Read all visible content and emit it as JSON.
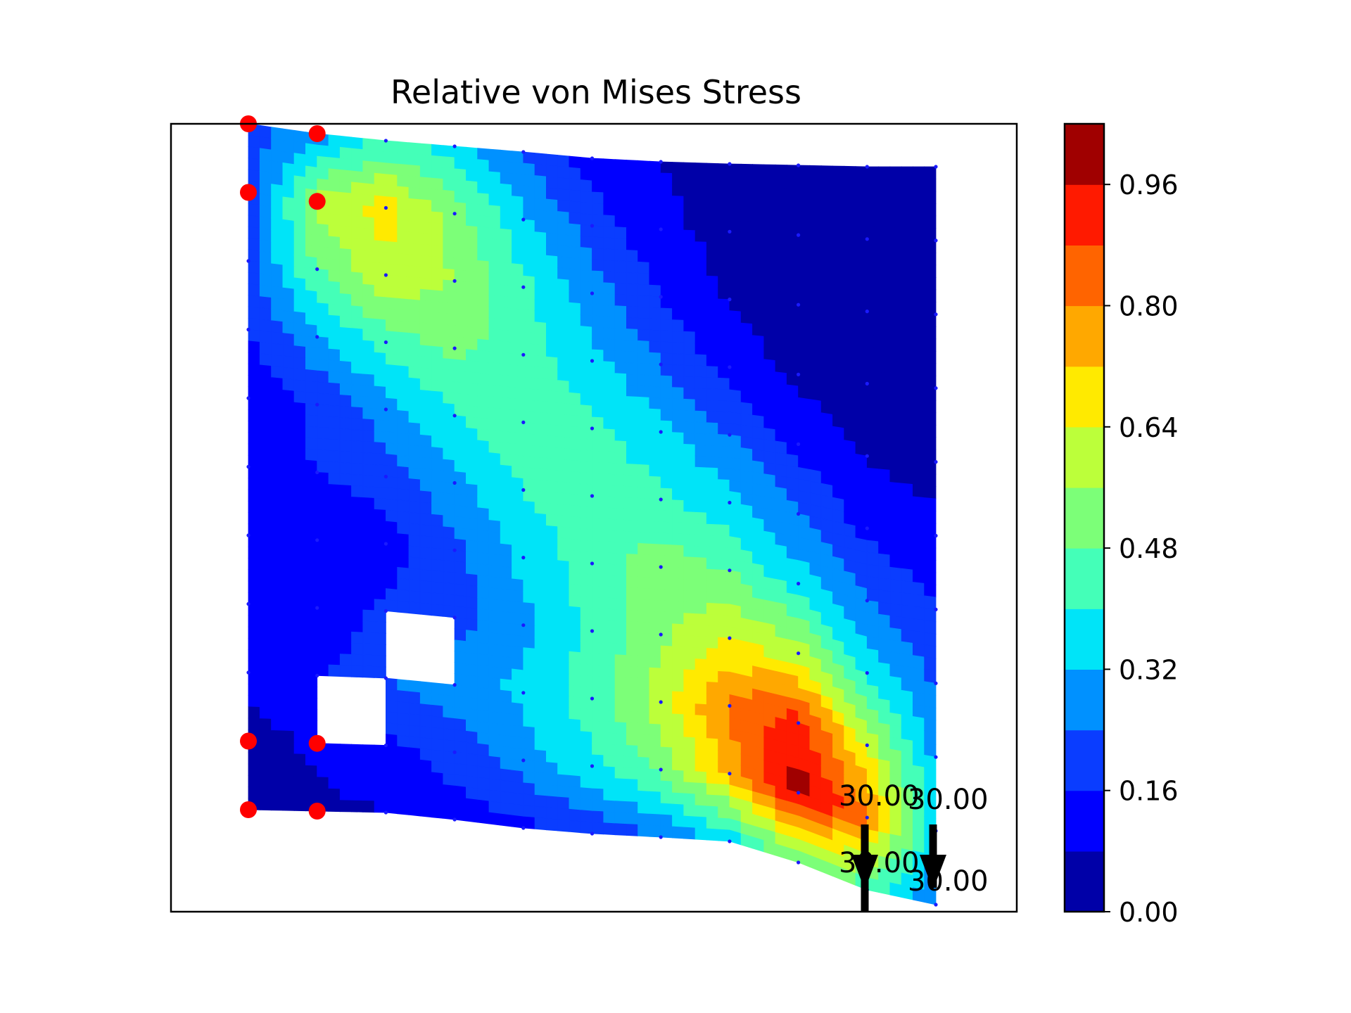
{
  "chart_data": {
    "type": "heatmap",
    "title": "Relative von Mises Stress",
    "xlabel": "",
    "ylabel": "",
    "colorbar": {
      "min": 0.0,
      "max": 1.04,
      "tick_labels": [
        "0.00",
        "0.16",
        "0.32",
        "0.48",
        "0.64",
        "0.80",
        "0.96"
      ],
      "tick_values": [
        0.0,
        0.16,
        0.32,
        0.48,
        0.64,
        0.8,
        0.96
      ],
      "level_colors": [
        "#0000a8",
        "#0000ff",
        "#0a3dff",
        "#0091ff",
        "#00e4f8",
        "#44ffb8",
        "#7cff78",
        "#bcff3a",
        "#ffea00",
        "#ffa800",
        "#ff6400",
        "#ff1a00",
        "#a00000"
      ]
    },
    "mesh": {
      "nx": 11,
      "ny": 11,
      "stress_rows_top_to_bottom": [
        [
          0.2,
          0.28,
          0.42,
          0.36,
          0.22,
          0.12,
          0.08,
          0.04,
          0.02,
          0.02,
          0.02
        ],
        [
          0.18,
          0.58,
          0.68,
          0.52,
          0.34,
          0.2,
          0.1,
          0.05,
          0.02,
          0.02,
          0.02
        ],
        [
          0.22,
          0.48,
          0.62,
          0.56,
          0.42,
          0.28,
          0.16,
          0.07,
          0.03,
          0.02,
          0.02
        ],
        [
          0.16,
          0.3,
          0.44,
          0.5,
          0.44,
          0.34,
          0.24,
          0.13,
          0.06,
          0.03,
          0.03
        ],
        [
          0.1,
          0.18,
          0.28,
          0.4,
          0.46,
          0.42,
          0.34,
          0.24,
          0.14,
          0.07,
          0.05
        ],
        [
          0.12,
          0.16,
          0.2,
          0.3,
          0.4,
          0.46,
          0.42,
          0.34,
          0.24,
          0.14,
          0.1
        ],
        [
          0.14,
          0.1,
          0.12,
          0.22,
          0.34,
          0.44,
          0.52,
          0.48,
          0.36,
          0.24,
          0.16
        ],
        [
          0.16,
          0.08,
          0.18,
          0.2,
          0.3,
          0.42,
          0.54,
          0.64,
          0.6,
          0.38,
          0.22
        ],
        [
          0.12,
          0.14,
          0.24,
          0.28,
          0.34,
          0.44,
          0.6,
          0.82,
          0.92,
          0.62,
          0.3
        ],
        [
          0.04,
          0.1,
          0.14,
          0.2,
          0.28,
          0.38,
          0.5,
          0.74,
          1.0,
          0.82,
          0.34
        ],
        [
          0.04,
          0.06,
          0.08,
          0.12,
          0.14,
          0.18,
          0.24,
          0.34,
          0.52,
          0.44,
          0.24
        ]
      ],
      "void_elements": [
        [
          7,
          2
        ],
        [
          8,
          1
        ]
      ]
    },
    "supports": 8,
    "loads": [
      {
        "label": "30.00"
      },
      {
        "label": "30.00"
      },
      {
        "label": "30.00"
      },
      {
        "label": "30.00"
      }
    ]
  }
}
